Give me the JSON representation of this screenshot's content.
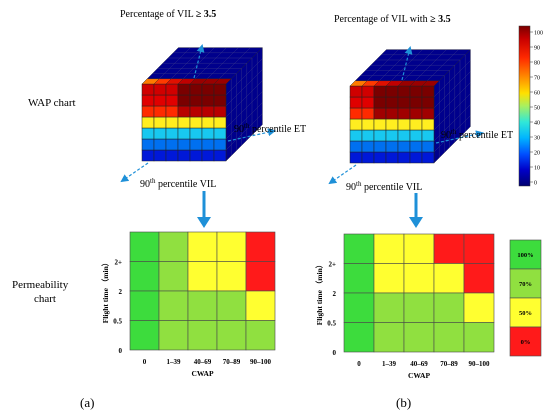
{
  "row_labels": {
    "wap": "WAP chart",
    "permeability_line1": "Permeability",
    "permeability_line2": "chart"
  },
  "panel_a": {
    "cube_title_prefix": "Percentage of VIL ",
    "cube_title_threshold": "≥ 3.5",
    "et_axis_base": "90",
    "et_axis_sup": "th",
    "et_axis_tail": " percentile ET",
    "vil_axis_base": "90",
    "vil_axis_sup": "th",
    "vil_axis_tail": " percentile VIL",
    "caption": "(a)"
  },
  "panel_b": {
    "cube_title_prefix": "Percentage of VIL with ",
    "cube_title_threshold": "≥ 3.5",
    "et_axis_base": "90",
    "et_axis_sup": "th",
    "et_axis_tail": " percentile ET",
    "vil_axis_base": "90",
    "vil_axis_sup": "th",
    "vil_axis_tail": " percentile VIL",
    "caption": "(b)"
  },
  "colorbar": {
    "ticks": [
      "100",
      "90",
      "80",
      "70",
      "60",
      "50",
      "40",
      "30",
      "20",
      "10",
      "0"
    ],
    "stops": [
      "#7a0000",
      "#c80000",
      "#ff2a00",
      "#ff8c00",
      "#ffe000",
      "#a8f060",
      "#30e8d8",
      "#00b4ff",
      "#0050ff",
      "#0000c8",
      "#000070"
    ]
  },
  "permeability_legend": {
    "entries": [
      {
        "label": "100%",
        "color": "#3ddc3d"
      },
      {
        "label": "70%",
        "color": "#90e040"
      },
      {
        "label": "50%",
        "color": "#ffff30"
      },
      {
        "label": "0%",
        "color": "#ff1a1a"
      }
    ]
  },
  "chart_data": [
    {
      "type": "heatmap",
      "panel": "a",
      "xlabel": "CWAP",
      "ylabel": "Flight time （min）",
      "x_categories": [
        "0",
        "1–39",
        "40–69",
        "70–89",
        "90–100"
      ],
      "y_categories": [
        "0",
        "0.5",
        "2",
        "2+"
      ],
      "legend": [
        "100%",
        "70%",
        "50%",
        "0%"
      ],
      "cells_top_to_bottom": [
        [
          "100%",
          "70%",
          "50%",
          "50%",
          "0%"
        ],
        [
          "100%",
          "70%",
          "50%",
          "50%",
          "0%"
        ],
        [
          "100%",
          "70%",
          "70%",
          "70%",
          "50%"
        ],
        [
          "100%",
          "70%",
          "70%",
          "70%",
          "70%"
        ]
      ]
    },
    {
      "type": "heatmap",
      "panel": "b",
      "xlabel": "CWAP",
      "ylabel": "Flight time （min）",
      "x_categories": [
        "0",
        "1–39",
        "40–69",
        "70–89",
        "90–100"
      ],
      "y_categories": [
        "0",
        "0.5",
        "2",
        "2+"
      ],
      "legend": [
        "100%",
        "70%",
        "50%",
        "0%"
      ],
      "cells_top_to_bottom": [
        [
          "100%",
          "50%",
          "50%",
          "0%",
          "0%"
        ],
        [
          "100%",
          "50%",
          "50%",
          "50%",
          "0%"
        ],
        [
          "100%",
          "70%",
          "70%",
          "70%",
          "50%"
        ],
        [
          "100%",
          "70%",
          "70%",
          "70%",
          "70%"
        ]
      ]
    }
  ],
  "cube_layers_bottom_to_top": {
    "colors_front": [
      "#0018d8",
      "#0070f0",
      "#18c8f0",
      "#ffee20",
      "#ff2a00",
      "#e00000",
      "#d00000"
    ],
    "top_face_colors": [
      "#ff7a00",
      "#ff3a00",
      "#e01000",
      "#c00000",
      "#9a0000"
    ],
    "side_color": "#00008c"
  },
  "cell_colors": {
    "100%": "#3ddc3d",
    "70%": "#90e040",
    "50%": "#ffff30",
    "0%": "#ff1a1a"
  },
  "arrow_color": "#1e90d8"
}
